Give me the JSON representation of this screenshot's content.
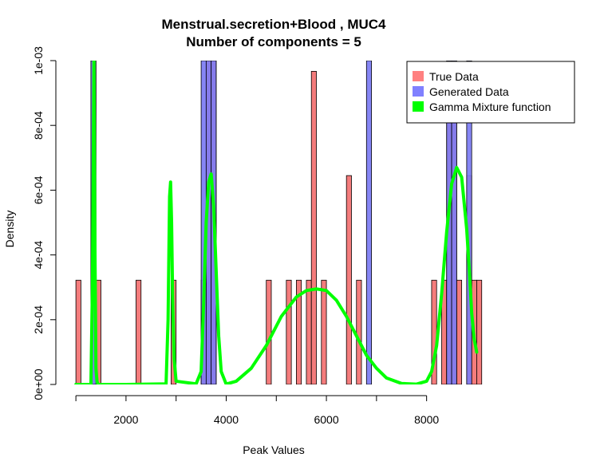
{
  "chart_data": {
    "type": "histogram",
    "title_line1": "Menstrual.secretion+Blood , MUC4",
    "title_line2": "Number of components =  5",
    "xlabel": "Peak Values",
    "ylabel": "Density",
    "xlim": [
      600,
      9200
    ],
    "ylim": [
      0,
      0.001
    ],
    "x_ticks": [
      2000,
      4000,
      6000,
      8000
    ],
    "x_tick_labels": [
      "2000",
      "4000",
      "6000",
      "8000"
    ],
    "y_ticks": [
      0,
      0.0002,
      0.0004,
      0.0006,
      0.0008,
      0.001
    ],
    "y_tick_labels": [
      "0e+00",
      "2e-04",
      "4e-04",
      "6e-04",
      "8e-04",
      "1e-03"
    ],
    "x_axis_range": [
      1000,
      8000
    ],
    "bin_width": 100,
    "colors": {
      "true_data": "#f47c7c",
      "generated_data": "#7c7cf4",
      "overlap": "#8a4fbf",
      "mixture": "#00ff00"
    },
    "legend": {
      "position": "top-right",
      "entries": [
        {
          "label": "True Data",
          "color": "#ff8080"
        },
        {
          "label": "Generated Data",
          "color": "#8080ff"
        },
        {
          "label": "Gamma Mixture function",
          "color": "#00ff00"
        }
      ]
    },
    "true_data": [
      {
        "x": 1000,
        "y": 0.000322
      },
      {
        "x": 1300,
        "y": 0.001
      },
      {
        "x": 1400,
        "y": 0.000322
      },
      {
        "x": 2200,
        "y": 0.000322
      },
      {
        "x": 2900,
        "y": 0.000322
      },
      {
        "x": 3500,
        "y": 0.000322
      },
      {
        "x": 3600,
        "y": 0.001
      },
      {
        "x": 3700,
        "y": 0.001
      },
      {
        "x": 4800,
        "y": 0.000322
      },
      {
        "x": 5200,
        "y": 0.000322
      },
      {
        "x": 5400,
        "y": 0.000322
      },
      {
        "x": 5600,
        "y": 0.000322
      },
      {
        "x": 5700,
        "y": 0.000967
      },
      {
        "x": 5900,
        "y": 0.000322
      },
      {
        "x": 6400,
        "y": 0.000645
      },
      {
        "x": 6600,
        "y": 0.000322
      },
      {
        "x": 8100,
        "y": 0.000322
      },
      {
        "x": 8300,
        "y": 0.000322
      },
      {
        "x": 8400,
        "y": 0.001
      },
      {
        "x": 8500,
        "y": 0.001
      },
      {
        "x": 8600,
        "y": 0.000322
      },
      {
        "x": 8800,
        "y": 0.000645
      },
      {
        "x": 8900,
        "y": 0.000322
      },
      {
        "x": 9000,
        "y": 0.000322
      }
    ],
    "generated_data": [
      {
        "x": 1300,
        "y": 0.001
      },
      {
        "x": 3500,
        "y": 0.001
      },
      {
        "x": 3600,
        "y": 0.001
      },
      {
        "x": 3700,
        "y": 0.001
      },
      {
        "x": 6800,
        "y": 0.001
      },
      {
        "x": 8400,
        "y": 0.001
      },
      {
        "x": 8500,
        "y": 0.001
      },
      {
        "x": 8800,
        "y": 0.001
      }
    ],
    "mixture_curve": {
      "x": [
        1000,
        1300,
        1330,
        1360,
        1380,
        1400,
        1420,
        1440,
        1460,
        2000,
        2800,
        2840,
        2870,
        2890,
        2910,
        2930,
        2960,
        3000,
        3400,
        3500,
        3550,
        3600,
        3650,
        3700,
        3750,
        3800,
        3850,
        3900,
        4000,
        4200,
        4500,
        4800,
        5100,
        5400,
        5600,
        5800,
        6000,
        6200,
        6400,
        6600,
        6800,
        7000,
        7200,
        7500,
        7800,
        8000,
        8100,
        8200,
        8300,
        8400,
        8500,
        8600,
        8700,
        8800,
        8850,
        8900,
        8950,
        9000
      ],
      "y": [
        0,
        0,
        0.0003,
        0.001,
        0.00042,
        5e-05,
        1e-05,
        0,
        0,
        0,
        2e-06,
        0.0002,
        0.00058,
        0.000625,
        0.0005,
        0.00028,
        8e-05,
        1e-05,
        2e-06,
        4e-05,
        0.00025,
        0.0005,
        0.000625,
        0.00065,
        0.00055,
        0.00035,
        0.00015,
        4e-05,
        1e-06,
        1e-05,
        5e-05,
        0.00012,
        0.00021,
        0.00027,
        0.00029,
        0.000295,
        0.00029,
        0.00026,
        0.00021,
        0.00015,
        9e-05,
        5e-05,
        2e-05,
        3e-06,
        1e-06,
        1e-05,
        4e-05,
        0.00012,
        0.00028,
        0.00047,
        0.00062,
        0.00067,
        0.00064,
        0.00048,
        0.00036,
        0.00022,
        0.00014,
        0.0001
      ]
    }
  }
}
